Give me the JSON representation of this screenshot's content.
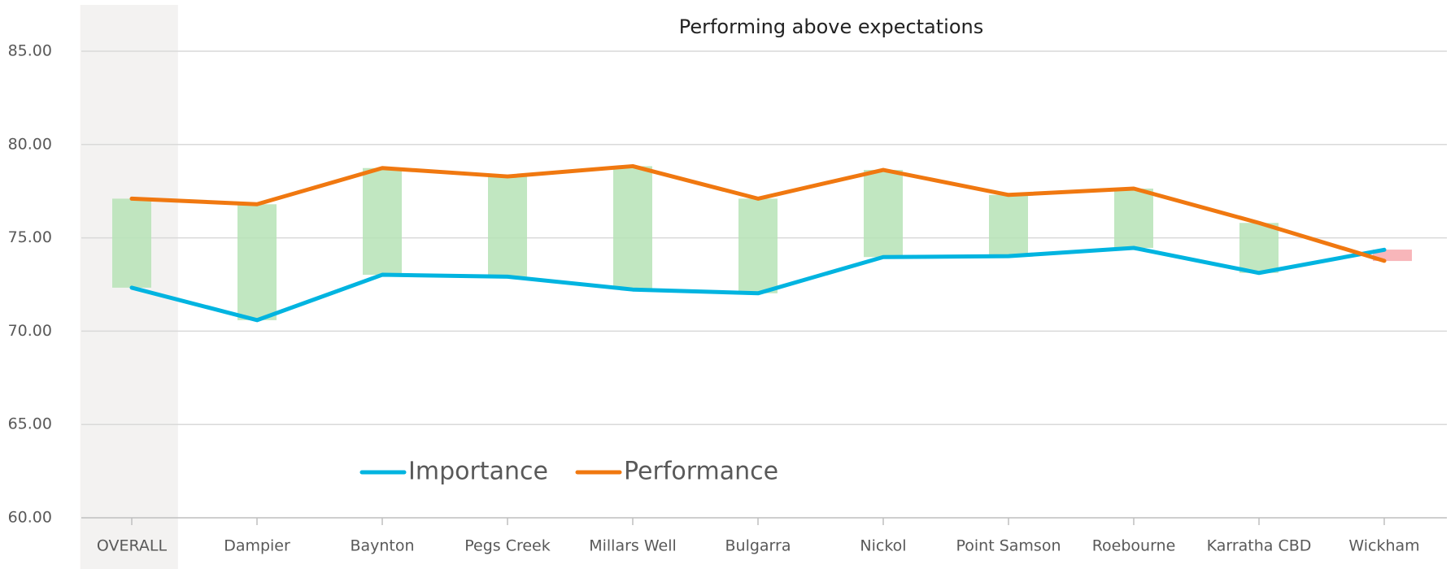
{
  "chart_data": {
    "type": "line",
    "title": "Performing above expectations",
    "categories": [
      "OVERALL",
      "Dampier",
      "Baynton",
      "Pegs Creek",
      "Millars Well",
      "Bulgarra",
      "Nickol",
      "Point Samson",
      "Roebourne",
      "Karratha CBD",
      "Wickham"
    ],
    "series": [
      {
        "name": "Importance",
        "color": "#00b4e0",
        "values": [
          72.33,
          70.59,
          73.02,
          72.92,
          72.23,
          72.03,
          73.97,
          74.02,
          74.46,
          73.12,
          74.36
        ]
      },
      {
        "name": "Performance",
        "color": "#f07810",
        "values": [
          77.1,
          76.8,
          78.74,
          78.29,
          78.84,
          77.1,
          78.64,
          77.3,
          77.64,
          75.8,
          73.77
        ]
      }
    ],
    "gap_colors": {
      "above": "#b6e3b6",
      "below": "#f7a9ae"
    },
    "highlight": 0,
    "ylim": [
      60,
      85
    ],
    "yticks": [
      {
        "value": 60,
        "label": "60.00"
      },
      {
        "value": 65,
        "label": "65.00"
      },
      {
        "value": 70,
        "label": "70.00"
      },
      {
        "value": 75,
        "label": "75.00"
      },
      {
        "value": 80,
        "label": "80.00"
      },
      {
        "value": 85,
        "label": "85.00"
      }
    ],
    "grid": true,
    "legend": "bottom-left"
  }
}
